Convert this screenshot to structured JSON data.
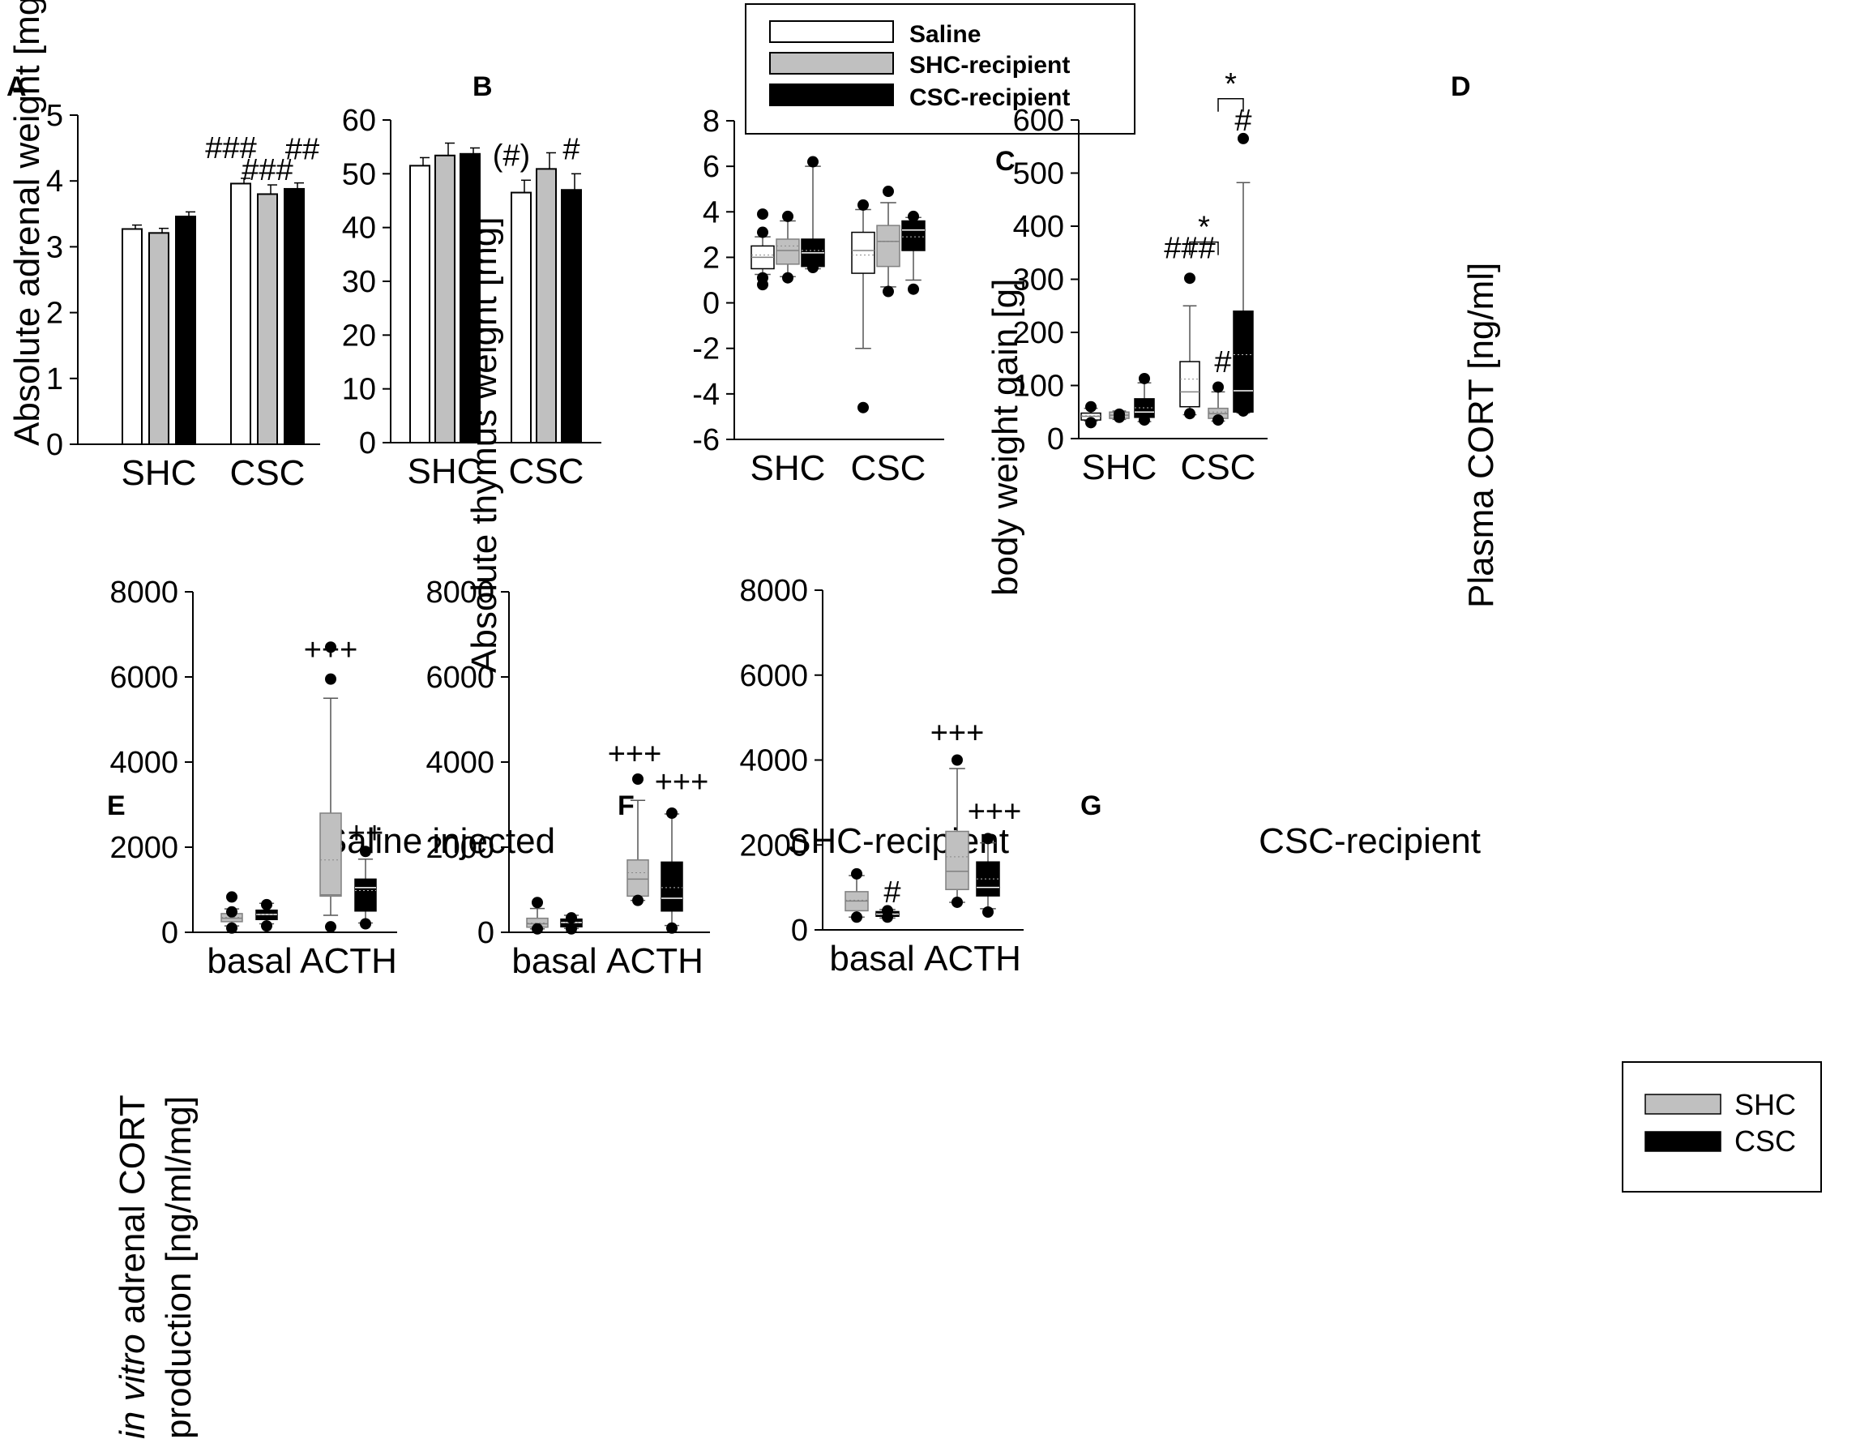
{
  "colors": {
    "saline": "#ffffff",
    "shc": "#c0c0c0",
    "csc": "#000000",
    "axis": "#000000",
    "median_light": "#808080",
    "median_dark": "#ffffff"
  },
  "legend_top": {
    "items": [
      {
        "label": "Saline",
        "color": "#ffffff"
      },
      {
        "label": "SHC-recipient",
        "color": "#c0c0c0"
      },
      {
        "label": "CSC-recipient",
        "color": "#000000"
      }
    ]
  },
  "legend_bottom": {
    "items": [
      {
        "label": "SHC",
        "color": "#c0c0c0"
      },
      {
        "label": "CSC",
        "color": "#000000"
      }
    ]
  },
  "chart_data": [
    {
      "panel": "A",
      "type": "bar",
      "ylabel": "Absolute adrenal weight [mg]",
      "categories": [
        "SHC",
        "CSC"
      ],
      "ylim": [
        0,
        5
      ],
      "yticks": [
        0,
        1,
        2,
        3,
        4,
        5
      ],
      "series": [
        {
          "name": "Saline",
          "values": [
            3.27,
            3.96
          ],
          "errors": [
            0.06,
            0.08
          ]
        },
        {
          "name": "SHC-recipient",
          "values": [
            3.21,
            3.8
          ],
          "errors": [
            0.07,
            0.14
          ]
        },
        {
          "name": "CSC-recipient",
          "values": [
            3.46,
            3.88
          ],
          "errors": [
            0.07,
            0.09
          ]
        }
      ],
      "annotations": [
        {
          "text": "###",
          "category": 1,
          "series": 0
        },
        {
          "text": "###",
          "category": 1,
          "series": 1
        },
        {
          "text": "##",
          "category": 1,
          "series": 2
        }
      ]
    },
    {
      "panel": "B",
      "type": "bar",
      "ylabel": "Absolute thymus weight [mg]",
      "categories": [
        "SHC",
        "CSC"
      ],
      "ylim": [
        0,
        60
      ],
      "yticks": [
        0,
        10,
        20,
        30,
        40,
        50,
        60
      ],
      "series": [
        {
          "name": "Saline",
          "values": [
            51.5,
            46.5
          ],
          "errors": [
            1.5,
            2.3
          ]
        },
        {
          "name": "SHC-recipient",
          "values": [
            53.4,
            50.9
          ],
          "errors": [
            2.3,
            3.0
          ]
        },
        {
          "name": "CSC-recipient",
          "values": [
            53.7,
            47.0
          ],
          "errors": [
            1.1,
            3.0
          ]
        }
      ],
      "annotations": [
        {
          "text": "(#)",
          "category": 1,
          "series": 0
        },
        {
          "text": "#",
          "category": 1,
          "series": 2
        }
      ]
    },
    {
      "panel": "C",
      "type": "box",
      "ylabel": "body weight gain [g]",
      "categories": [
        "SHC",
        "CSC"
      ],
      "ylim": [
        -6,
        8
      ],
      "yticks": [
        -6,
        -4,
        -2,
        0,
        2,
        4,
        6,
        8
      ],
      "series": [
        {
          "name": "Saline",
          "boxes": [
            {
              "q1": 1.5,
              "median": 2.0,
              "q3": 2.5,
              "mean": 2.1,
              "whisker_low": 1.25,
              "whisker_high": 2.9,
              "outliers": [
                0.8,
                1.1,
                3.1,
                3.9
              ]
            },
            {
              "q1": 1.3,
              "median": 2.3,
              "q3": 3.1,
              "mean": 2.1,
              "whisker_low": -2.0,
              "whisker_high": 4.1,
              "outliers": [
                -4.6,
                4.3
              ]
            }
          ]
        },
        {
          "name": "SHC-recipient",
          "boxes": [
            {
              "q1": 1.7,
              "median": 2.3,
              "q3": 2.8,
              "mean": 2.5,
              "whisker_low": 1.15,
              "whisker_high": 3.6,
              "outliers": [
                1.1,
                3.8
              ]
            },
            {
              "q1": 1.6,
              "median": 2.7,
              "q3": 3.4,
              "mean": 2.7,
              "whisker_low": 0.7,
              "whisker_high": 4.4,
              "outliers": [
                0.5,
                4.9
              ]
            }
          ]
        },
        {
          "name": "CSC-recipient",
          "boxes": [
            {
              "q1": 1.6,
              "median": 2.2,
              "q3": 2.8,
              "mean": 2.3,
              "whisker_low": 1.5,
              "whisker_high": 6.0,
              "outliers": [
                1.55,
                6.2
              ]
            },
            {
              "q1": 2.3,
              "median": 3.2,
              "q3": 3.6,
              "mean": 2.9,
              "whisker_low": 1.0,
              "whisker_high": 3.75,
              "outliers": [
                0.6,
                3.8
              ]
            }
          ]
        }
      ]
    },
    {
      "panel": "D",
      "type": "box",
      "ylabel": "Plasma CORT [ng/ml]",
      "categories": [
        "SHC",
        "CSC"
      ],
      "ylim": [
        0,
        600
      ],
      "yticks": [
        0,
        100,
        200,
        300,
        400,
        500,
        600
      ],
      "series": [
        {
          "name": "Saline",
          "boxes": [
            {
              "q1": 35,
              "median": 42,
              "q3": 48,
              "mean": 43,
              "whisker_low": 33,
              "whisker_high": 57,
              "outliers": [
                30,
                60
              ]
            },
            {
              "q1": 60,
              "median": 88,
              "q3": 145,
              "mean": 112,
              "whisker_low": 45,
              "whisker_high": 250,
              "outliers": [
                47,
                302
              ]
            }
          ]
        },
        {
          "name": "SHC-recipient",
          "boxes": [
            {
              "q1": 38,
              "median": 44,
              "q3": 50,
              "mean": 44,
              "whisker_low": 36,
              "whisker_high": 52,
              "outliers": [
                40,
                46
              ]
            },
            {
              "q1": 38,
              "median": 47,
              "q3": 57,
              "mean": 50,
              "whisker_low": 33,
              "whisker_high": 88,
              "outliers": [
                35,
                97
              ]
            }
          ]
        },
        {
          "name": "CSC-recipient",
          "boxes": [
            {
              "q1": 40,
              "median": 50,
              "q3": 75,
              "mean": 58,
              "whisker_low": 32,
              "whisker_high": 105,
              "outliers": [
                35,
                113
              ]
            },
            {
              "q1": 50,
              "median": 90,
              "q3": 240,
              "mean": 158,
              "whisker_low": 48,
              "whisker_high": 482,
              "outliers": [
                52,
                565
              ]
            }
          ]
        }
      ],
      "annotations": [
        {
          "text": "###",
          "category": 1,
          "series": 0
        },
        {
          "text": "#",
          "category": 1,
          "series": 1
        },
        {
          "text": "#",
          "category": 1,
          "series": 2
        },
        {
          "text": "*",
          "type": "bracket",
          "category": 1,
          "from": 0,
          "to": 1
        },
        {
          "text": "*",
          "type": "bracket",
          "category": 1,
          "from": 1,
          "to": 2
        }
      ]
    },
    {
      "panel": "E",
      "type": "box",
      "title": "Saline injected",
      "ylabel_line1_italic": "in vitro",
      "ylabel_line1_rest": " adrenal CORT",
      "ylabel_line2": "production   [ng/ml/mg]",
      "categories": [
        "basal",
        "ACTH"
      ],
      "ylim": [
        0,
        8000
      ],
      "yticks": [
        0,
        2000,
        4000,
        6000,
        8000
      ],
      "series": [
        {
          "name": "SHC",
          "boxes": [
            {
              "q1": 250,
              "median": 330,
              "q3": 440,
              "mean": 350,
              "whisker_low": 150,
              "whisker_high": 550,
              "outliers": [
                100,
                480,
                830
              ]
            },
            {
              "q1": 850,
              "median": 880,
              "q3": 2800,
              "mean": 1700,
              "whisker_low": 400,
              "whisker_high": 5500,
              "outliers": [
                130,
                6700,
                5950
              ]
            }
          ]
        },
        {
          "name": "CSC",
          "boxes": [
            {
              "q1": 300,
              "median": 420,
              "q3": 520,
              "mean": 420,
              "whisker_low": 200,
              "whisker_high": 680,
              "outliers": [
                150,
                650
              ]
            },
            {
              "q1": 500,
              "median": 1050,
              "q3": 1250,
              "mean": 980,
              "whisker_low": 220,
              "whisker_high": 1720,
              "outliers": [
                200,
                1900
              ]
            }
          ]
        }
      ],
      "annotations": [
        {
          "text": "+++",
          "category": 1,
          "series": 0
        },
        {
          "text": "++",
          "category": 1,
          "series": 1
        }
      ]
    },
    {
      "panel": "F",
      "type": "box",
      "title": "SHC-recipient",
      "categories": [
        "basal",
        "ACTH"
      ],
      "ylim": [
        0,
        8000
      ],
      "yticks": [
        0,
        2000,
        4000,
        6000,
        8000
      ],
      "series": [
        {
          "name": "SHC",
          "boxes": [
            {
              "q1": 120,
              "median": 200,
              "q3": 330,
              "mean": 220,
              "whisker_low": 80,
              "whisker_high": 560,
              "outliers": [
                80,
                700
              ]
            },
            {
              "q1": 850,
              "median": 1250,
              "q3": 1700,
              "mean": 1400,
              "whisker_low": 750,
              "whisker_high": 3100,
              "outliers": [
                750,
                3600
              ]
            }
          ]
        },
        {
          "name": "CSC",
          "boxes": [
            {
              "q1": 130,
              "median": 230,
              "q3": 310,
              "mean": 230,
              "whisker_low": 90,
              "whisker_high": 400,
              "outliers": [
                80,
                340
              ]
            },
            {
              "q1": 500,
              "median": 800,
              "q3": 1650,
              "mean": 1050,
              "whisker_low": 160,
              "whisker_high": 2780,
              "outliers": [
                100,
                2800
              ]
            }
          ]
        }
      ],
      "annotations": [
        {
          "text": "+++",
          "category": 1,
          "series": 0
        },
        {
          "text": "+++",
          "category": 1,
          "series": 1
        }
      ]
    },
    {
      "panel": "G",
      "type": "box",
      "title": "CSC-recipient",
      "categories": [
        "basal",
        "ACTH"
      ],
      "ylim": [
        0,
        8000
      ],
      "yticks": [
        0,
        2000,
        4000,
        6000,
        8000
      ],
      "series": [
        {
          "name": "SHC",
          "boxes": [
            {
              "q1": 450,
              "median": 680,
              "q3": 900,
              "mean": 700,
              "whisker_low": 300,
              "whisker_high": 1280,
              "outliers": [
                300,
                1320
              ]
            },
            {
              "q1": 950,
              "median": 1380,
              "q3": 2320,
              "mean": 1720,
              "whisker_low": 650,
              "whisker_high": 3800,
              "outliers": [
                650,
                4000
              ]
            }
          ]
        },
        {
          "name": "CSC",
          "boxes": [
            {
              "q1": 320,
              "median": 370,
              "q3": 430,
              "mean": 380,
              "whisker_low": 280,
              "whisker_high": 480,
              "outliers": [
                300,
                450
              ]
            },
            {
              "q1": 800,
              "median": 1000,
              "q3": 1600,
              "mean": 1200,
              "whisker_low": 500,
              "whisker_high": 2050,
              "outliers": [
                420,
                2150
              ]
            }
          ]
        }
      ],
      "annotations": [
        {
          "text": "#",
          "category": 0,
          "series": 1
        },
        {
          "text": "+++",
          "category": 1,
          "series": 0
        },
        {
          "text": "+++",
          "category": 1,
          "series": 1
        }
      ]
    }
  ]
}
